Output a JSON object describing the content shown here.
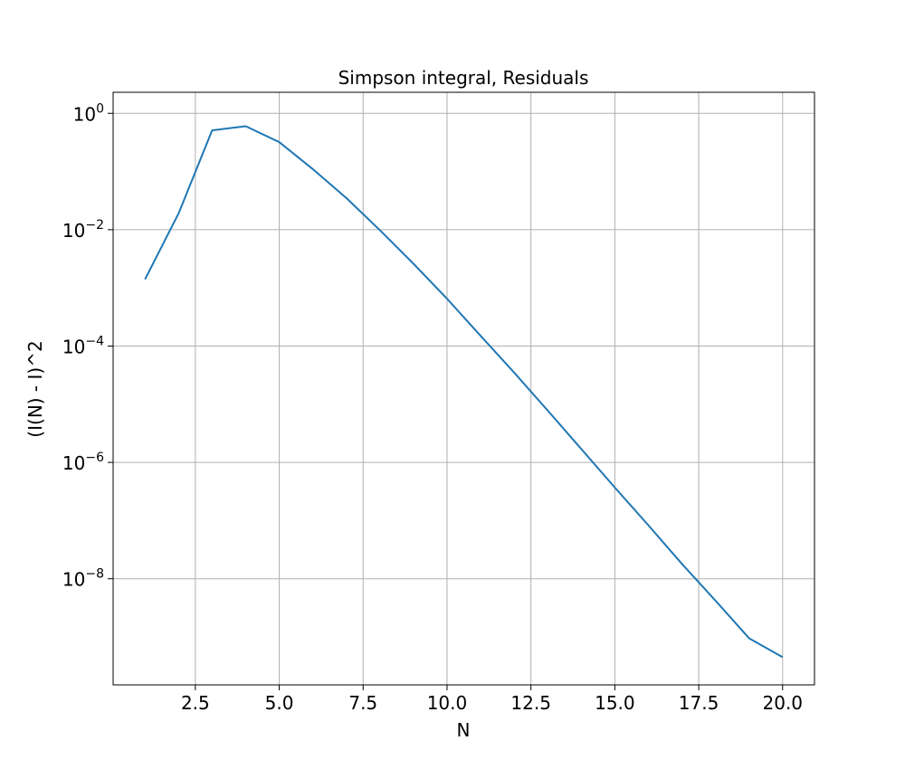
{
  "chart_data": {
    "type": "line",
    "title": "Simpson integral, Residuals",
    "xlabel": "N",
    "ylabel": "(I(N) - I)^2",
    "yscale": "log",
    "grid": true,
    "xlim": [
      0.05,
      20.95
    ],
    "ylim": [
      1.5e-10,
      2.3
    ],
    "x_ticks": [
      2.5,
      5.0,
      7.5,
      10.0,
      12.5,
      15.0,
      17.5,
      20.0
    ],
    "x_tick_labels": [
      "2.5",
      "5.0",
      "7.5",
      "10.0",
      "12.5",
      "15.0",
      "17.5",
      "20.0"
    ],
    "y_tick_exponents": [
      0,
      -2,
      -4,
      -6,
      -8
    ],
    "y_tick_base": "10",
    "series": [
      {
        "color": "#1f77b4",
        "x": [
          1,
          2,
          3,
          4,
          5,
          6,
          7,
          8,
          9,
          10,
          11,
          12,
          13,
          14,
          15,
          16,
          17,
          18,
          19,
          20
        ],
        "y": [
          0.0014,
          0.019,
          0.51,
          0.6,
          0.32,
          0.11,
          0.035,
          0.0098,
          0.0026,
          0.00065,
          0.00015,
          3.5e-05,
          7.8e-06,
          1.7e-06,
          3.7e-07,
          8.3e-08,
          1.8e-08,
          4.2e-09,
          9.5e-10,
          4.5e-10
        ]
      }
    ]
  }
}
